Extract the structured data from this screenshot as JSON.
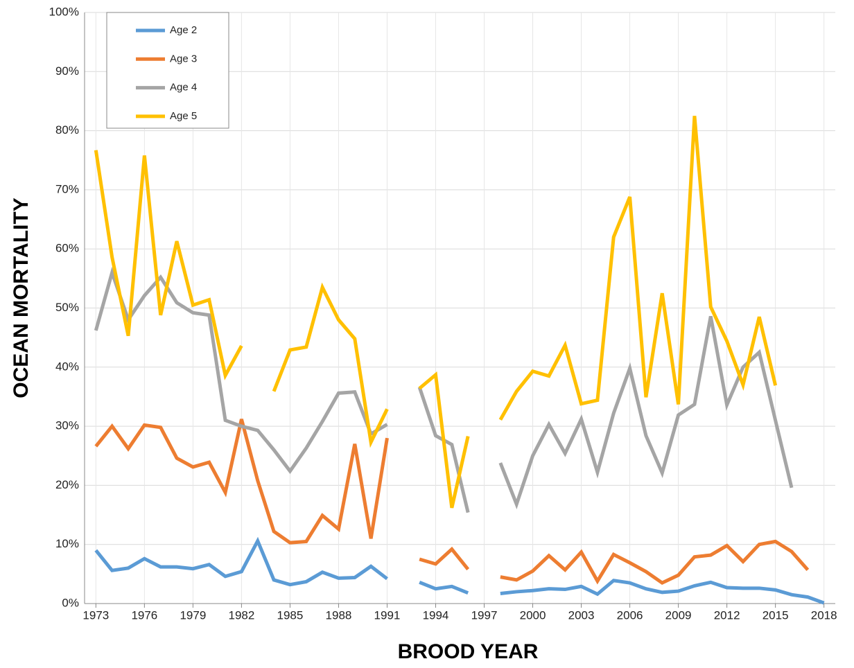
{
  "chart_data": {
    "type": "line",
    "xlabel": "BROOD YEAR",
    "ylabel": "OCEAN MORTALITY",
    "x": [
      1973,
      1974,
      1975,
      1976,
      1977,
      1978,
      1979,
      1980,
      1981,
      1982,
      1983,
      1984,
      1985,
      1986,
      1987,
      1988,
      1989,
      1990,
      1991,
      1992,
      1993,
      1994,
      1995,
      1996,
      1997,
      1998,
      1999,
      2000,
      2001,
      2002,
      2003,
      2004,
      2005,
      2006,
      2007,
      2008,
      2009,
      2010,
      2011,
      2012,
      2013,
      2014,
      2015,
      2016,
      2017,
      2018
    ],
    "series": [
      {
        "name": "Age 2",
        "color": "#5b9bd5",
        "values": [
          9.0,
          5.6,
          6.0,
          7.6,
          6.2,
          6.2,
          5.9,
          6.6,
          4.6,
          5.4,
          10.6,
          4.0,
          3.2,
          3.7,
          5.3,
          4.3,
          4.4,
          6.3,
          4.2,
          null,
          3.6,
          2.5,
          2.9,
          1.8,
          null,
          1.7,
          2.0,
          2.2,
          2.5,
          2.4,
          2.9,
          1.6,
          3.9,
          3.5,
          2.5,
          1.9,
          2.1,
          3.0,
          3.6,
          2.7,
          2.6,
          2.6,
          2.3,
          1.5,
          1.1,
          0.1
        ]
      },
      {
        "name": "Age 3",
        "color": "#ed7d31",
        "values": [
          26.6,
          30.0,
          26.2,
          30.2,
          29.8,
          24.6,
          23.1,
          23.9,
          18.8,
          31.2,
          20.8,
          12.2,
          10.3,
          10.5,
          14.9,
          12.6,
          27.0,
          11.0,
          28.0,
          null,
          7.5,
          6.7,
          9.2,
          5.8,
          null,
          4.5,
          4.0,
          5.5,
          8.1,
          5.7,
          8.7,
          3.8,
          8.3,
          6.9,
          5.4,
          3.5,
          4.8,
          7.9,
          8.2,
          9.8,
          7.1,
          10.0,
          10.5,
          8.8,
          5.7,
          null
        ]
      },
      {
        "name": "Age 4",
        "color": "#a5a5a5",
        "values": [
          46.2,
          56.0,
          48.0,
          52.1,
          55.2,
          50.9,
          49.2,
          48.8,
          31.0,
          30.0,
          29.3,
          26.0,
          22.4,
          26.3,
          30.8,
          35.6,
          35.8,
          28.7,
          30.3,
          null,
          36.6,
          28.4,
          26.9,
          15.4,
          null,
          23.8,
          16.8,
          25.0,
          30.3,
          25.4,
          31.2,
          22.2,
          32.2,
          39.8,
          28.4,
          22.1,
          31.9,
          33.7,
          48.6,
          33.6,
          40.0,
          42.5,
          31.0,
          19.6,
          null,
          null
        ]
      },
      {
        "name": "Age 5",
        "color": "#ffc000",
        "values": [
          76.7,
          58.6,
          45.3,
          75.8,
          48.8,
          61.3,
          50.5,
          51.4,
          38.6,
          43.6,
          null,
          35.9,
          42.9,
          43.4,
          53.5,
          48.0,
          44.8,
          27.3,
          32.9,
          null,
          36.4,
          38.7,
          16.2,
          28.3,
          null,
          31.1,
          35.9,
          39.3,
          38.5,
          43.7,
          33.8,
          34.4,
          62.0,
          68.8,
          34.9,
          52.5,
          33.7,
          82.5,
          50.2,
          44.4,
          37.0,
          48.5,
          36.9,
          null,
          null,
          null
        ]
      }
    ],
    "xlim": [
      1972.3,
      2018.7
    ],
    "xticks": [
      1973,
      1976,
      1979,
      1982,
      1985,
      1988,
      1991,
      1994,
      1997,
      2000,
      2003,
      2006,
      2009,
      2012,
      2015,
      2018
    ],
    "ylim": [
      0,
      100
    ],
    "yticks": [
      {
        "value": 0,
        "label": "0%"
      },
      {
        "value": 10,
        "label": "10%"
      },
      {
        "value": 20,
        "label": "20%"
      },
      {
        "value": 30,
        "label": "30%"
      },
      {
        "value": 40,
        "label": "40%"
      },
      {
        "value": 50,
        "label": "50%"
      },
      {
        "value": 60,
        "label": "60%"
      },
      {
        "value": 70,
        "label": "70%"
      },
      {
        "value": 80,
        "label": "80%"
      },
      {
        "value": 90,
        "label": "90%"
      },
      {
        "value": 100,
        "label": "100%"
      }
    ],
    "grid": true,
    "legend": "upper left"
  }
}
